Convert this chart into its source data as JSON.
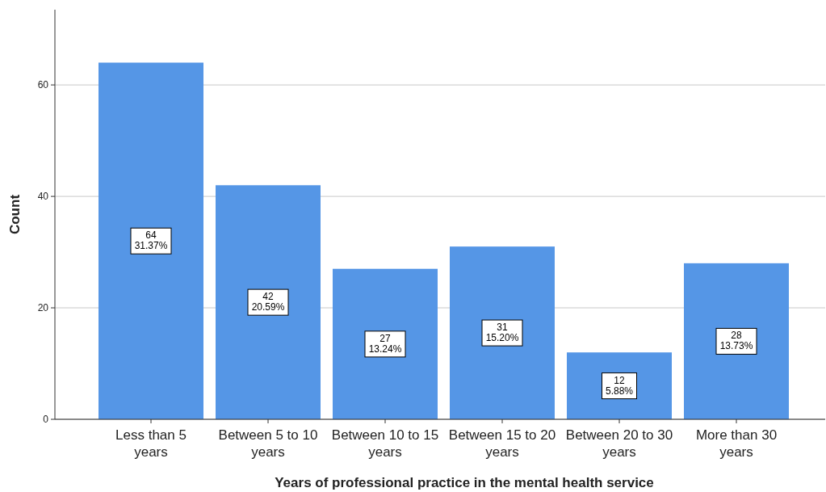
{
  "chart_data": {
    "type": "bar",
    "xlabel": "Years of professional practice in the mental health service",
    "ylabel": "Count",
    "categories": [
      "Less than 5 years",
      "Between 5 to 10 years",
      "Between 10 to 15 years",
      "Between 15 to 20 years",
      "Between 20 to 30 years",
      "More than 30 years"
    ],
    "values": [
      64,
      42,
      27,
      31,
      12,
      28
    ],
    "value_labels": [
      "64\n31.37%",
      "42\n20.59%",
      "27\n13.24%",
      "31\n15.20%",
      "12\n5.88%",
      "28\n13.73%"
    ],
    "color": "#5596e6",
    "ylim": [
      0,
      73.5
    ],
    "yticks": [
      0,
      20,
      40,
      60
    ],
    "grid": "y"
  }
}
